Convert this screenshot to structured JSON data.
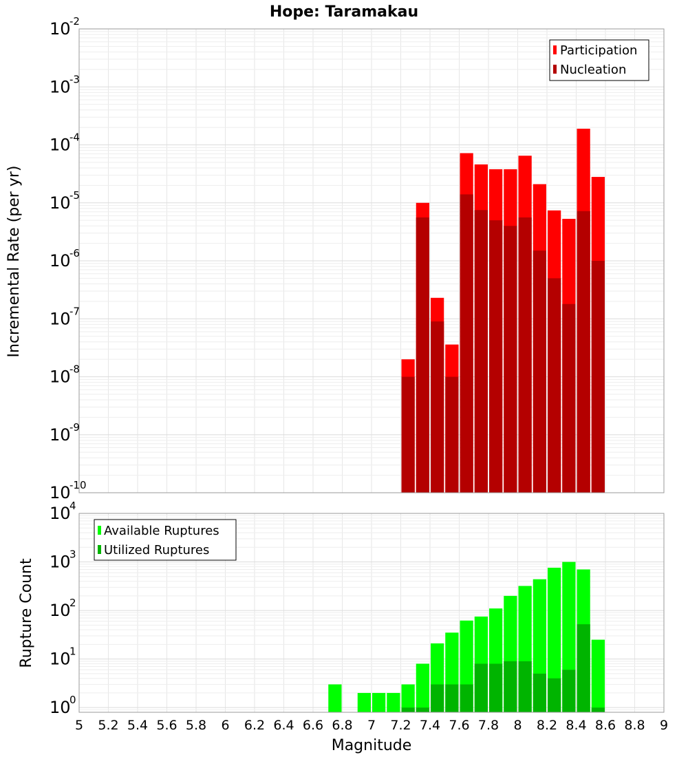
{
  "title": "Hope: Taramakau",
  "chart_data": [
    {
      "type": "bar",
      "title": "Hope: Taramakau",
      "ylabel": "Incremental Rate (per yr)",
      "xlabel": "",
      "y_scale": "log",
      "ylim": [
        1e-10,
        0.01
      ],
      "xlim": [
        5,
        9
      ],
      "bar_width": 0.1,
      "grid": true,
      "legend_position": "top-right",
      "y_tick_labels": [
        {
          "base": "10",
          "exp": "-10"
        },
        {
          "base": "10",
          "exp": "-9"
        },
        {
          "base": "10",
          "exp": "-8"
        },
        {
          "base": "10",
          "exp": "-7"
        },
        {
          "base": "10",
          "exp": "-6"
        },
        {
          "base": "10",
          "exp": "-5"
        },
        {
          "base": "10",
          "exp": "-4"
        },
        {
          "base": "10",
          "exp": "-3"
        },
        {
          "base": "10",
          "exp": "-2"
        }
      ],
      "x": [
        7.25,
        7.35,
        7.45,
        7.55,
        7.65,
        7.75,
        7.85,
        7.95,
        8.05,
        8.15,
        8.25,
        8.35,
        8.45,
        8.55
      ],
      "series": [
        {
          "name": "Participation",
          "color": "#ff0000",
          "values": [
            2e-08,
            1e-05,
            2.3e-07,
            3.6e-08,
            7.2e-05,
            4.6e-05,
            3.8e-05,
            3.8e-05,
            6.5e-05,
            2.1e-05,
            7.4e-06,
            5.3e-06,
            0.00019,
            2.8e-05
          ]
        },
        {
          "name": "Nucleation",
          "color": "#b40000",
          "values": [
            1e-08,
            5.6e-06,
            9e-08,
            1e-08,
            1.4e-05,
            7.5e-06,
            5e-06,
            4e-06,
            5.6e-06,
            1.5e-06,
            5e-07,
            1.8e-07,
            7.2e-06,
            1e-06
          ]
        }
      ]
    },
    {
      "type": "bar",
      "title": "",
      "ylabel": "Rupture Count",
      "xlabel": "Magnitude",
      "y_scale": "log",
      "ylim": [
        0.8,
        10000
      ],
      "xlim": [
        5,
        9
      ],
      "bar_width": 0.1,
      "grid": true,
      "legend_position": "top-left",
      "x_tick_labels": [
        "5",
        "5.2",
        "5.4",
        "5.6",
        "5.8",
        "6",
        "6.2",
        "6.4",
        "6.6",
        "6.8",
        "7",
        "7.2",
        "7.4",
        "7.6",
        "7.8",
        "8",
        "8.2",
        "8.4",
        "8.6",
        "8.8",
        "9"
      ],
      "y_tick_labels": [
        {
          "base": "10",
          "exp": "0"
        },
        {
          "base": "10",
          "exp": "1"
        },
        {
          "base": "10",
          "exp": "2"
        },
        {
          "base": "10",
          "exp": "3"
        },
        {
          "base": "10",
          "exp": "4"
        }
      ],
      "series": [
        {
          "name": "Available Ruptures",
          "color": "#00ff00",
          "x": [
            6.75,
            6.95,
            7.05,
            7.15,
            7.25,
            7.35,
            7.45,
            7.55,
            7.65,
            7.75,
            7.85,
            7.95,
            8.05,
            8.15,
            8.25,
            8.35,
            8.45,
            8.55
          ],
          "values": [
            3,
            2,
            2,
            2,
            3,
            8,
            21,
            35,
            62,
            75,
            110,
            200,
            320,
            440,
            760,
            1000,
            700,
            25
          ]
        },
        {
          "name": "Utilized Ruptures",
          "color": "#00b400",
          "x": [
            7.25,
            7.35,
            7.45,
            7.55,
            7.65,
            7.75,
            7.85,
            7.95,
            8.05,
            8.15,
            8.25,
            8.35,
            8.45,
            8.55
          ],
          "values": [
            1,
            1,
            3,
            3,
            3,
            8,
            8,
            9,
            9,
            5,
            4,
            6,
            52,
            1
          ]
        }
      ]
    }
  ]
}
